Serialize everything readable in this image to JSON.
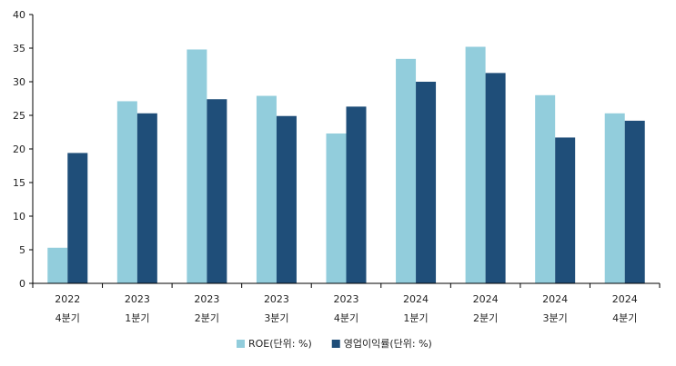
{
  "chart_data": {
    "type": "bar",
    "categories": [
      {
        "year": "2022",
        "quarter": "4분기"
      },
      {
        "year": "2023",
        "quarter": "1분기"
      },
      {
        "year": "2023",
        "quarter": "2분기"
      },
      {
        "year": "2023",
        "quarter": "3분기"
      },
      {
        "year": "2023",
        "quarter": "4분기"
      },
      {
        "year": "2024",
        "quarter": "1분기"
      },
      {
        "year": "2024",
        "quarter": "2분기"
      },
      {
        "year": "2024",
        "quarter": "3분기"
      },
      {
        "year": "2024",
        "quarter": "4분기"
      }
    ],
    "series": [
      {
        "name": "ROE(단위: %)",
        "color": "#92CDDC",
        "values": [
          5.3,
          27.1,
          34.8,
          27.9,
          22.3,
          33.4,
          35.2,
          28.0,
          25.3
        ]
      },
      {
        "name": "영업이익률(단위: %)",
        "color": "#1F4E79",
        "values": [
          19.4,
          25.3,
          27.4,
          24.9,
          26.3,
          30.0,
          31.3,
          21.7,
          24.2
        ]
      }
    ],
    "title": "",
    "xlabel": "",
    "ylabel": "",
    "ylim": [
      0,
      40
    ],
    "yticks": [
      0,
      5,
      10,
      15,
      20,
      25,
      30,
      35,
      40
    ],
    "grid": false,
    "legend": "bottom"
  }
}
